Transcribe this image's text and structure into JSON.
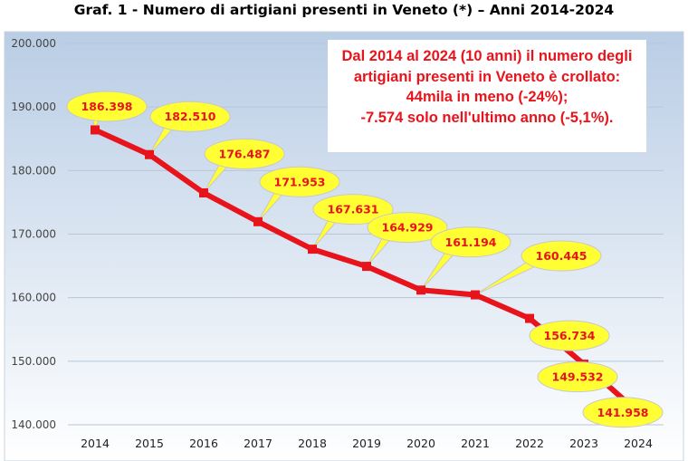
{
  "chart_data": {
    "type": "line",
    "title": "Graf. 1 - Numero di artigiani presenti in Veneto (*) – Anni 2014-2024",
    "categories": [
      "2014",
      "2015",
      "2016",
      "2017",
      "2018",
      "2019",
      "2020",
      "2021",
      "2022",
      "2023",
      "2024"
    ],
    "values": [
      186398,
      182510,
      176487,
      171953,
      167631,
      164929,
      161194,
      160445,
      156734,
      149532,
      141958
    ],
    "data_labels": [
      "186.398",
      "182.510",
      "176.487",
      "171.953",
      "167.631",
      "164.929",
      "161.194",
      "160.445",
      "156.734",
      "149.532",
      "141.958"
    ],
    "ylim": [
      140000,
      200000
    ],
    "yticks": [
      140000,
      150000,
      160000,
      170000,
      180000,
      190000,
      200000
    ],
    "ytick_labels": [
      "140.000",
      "150.000",
      "160.000",
      "170.000",
      "180.000",
      "190.000",
      "200.000"
    ],
    "xlabel": "",
    "ylabel": "",
    "grid": true,
    "legend": "none",
    "annotation": [
      "Dal 2014 al 2024 (10 anni) il numero degli",
      "artigiani presenti in Veneto è crollato:",
      "44mila in meno (-24%);",
      "-7.574 solo nell'ultimo anno (-5,1%)."
    ]
  },
  "colors": {
    "line": "#e8141b",
    "label_text": "#e8141b",
    "callout_fill": "#ffff33",
    "callout_border": "#c8c8c8",
    "grid": "#b8c6d8",
    "plot_top": "#b9cde5",
    "plot_bottom": "#ffffff"
  }
}
